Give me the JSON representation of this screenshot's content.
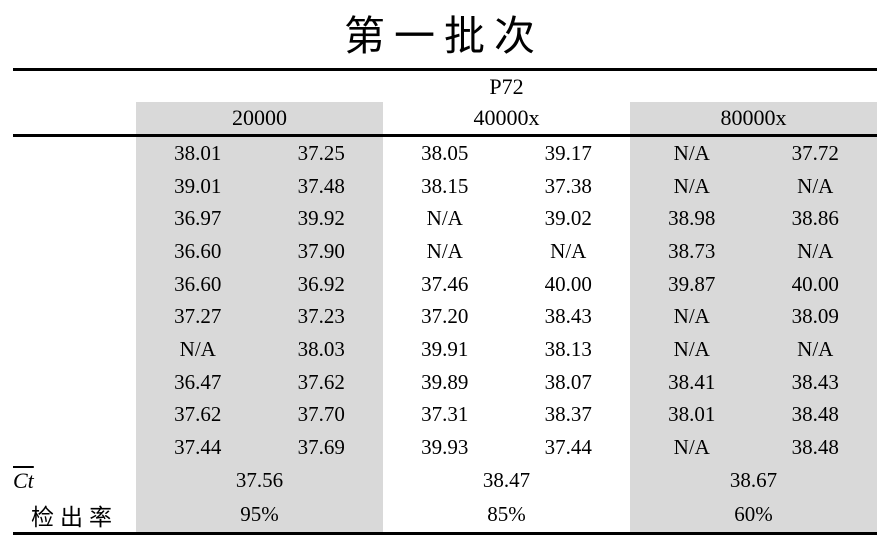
{
  "title": "第一批次",
  "colors": {
    "shade": "#d9d9d9",
    "rule": "#000000",
    "text": "#000000",
    "background": "#ffffff"
  },
  "table": {
    "sample": "P72",
    "columns": [
      "20000",
      "40000x",
      "80000x"
    ],
    "rows": [
      [
        "38.01",
        "37.25",
        "38.05",
        "39.17",
        "N/A",
        "37.72"
      ],
      [
        "39.01",
        "37.48",
        "38.15",
        "37.38",
        "N/A",
        "N/A"
      ],
      [
        "36.97",
        "39.92",
        "N/A",
        "39.02",
        "38.98",
        "38.86"
      ],
      [
        "36.60",
        "37.90",
        "N/A",
        "N/A",
        "38.73",
        "N/A"
      ],
      [
        "36.60",
        "36.92",
        "37.46",
        "40.00",
        "39.87",
        "40.00"
      ],
      [
        "37.27",
        "37.23",
        "37.20",
        "38.43",
        "N/A",
        "38.09"
      ],
      [
        "N/A",
        "38.03",
        "39.91",
        "38.13",
        "N/A",
        "N/A"
      ],
      [
        "36.47",
        "37.62",
        "39.89",
        "38.07",
        "38.41",
        "38.43"
      ],
      [
        "37.62",
        "37.70",
        "37.31",
        "38.37",
        "38.01",
        "38.48"
      ],
      [
        "37.44",
        "37.69",
        "39.93",
        "37.44",
        "N/A",
        "38.48"
      ]
    ],
    "ct_mean": {
      "label": "Ct",
      "values": [
        "37.56",
        "38.47",
        "38.67"
      ]
    },
    "detection_rate": {
      "label": "检出率",
      "values": [
        "95%",
        "85%",
        "60%"
      ]
    }
  }
}
